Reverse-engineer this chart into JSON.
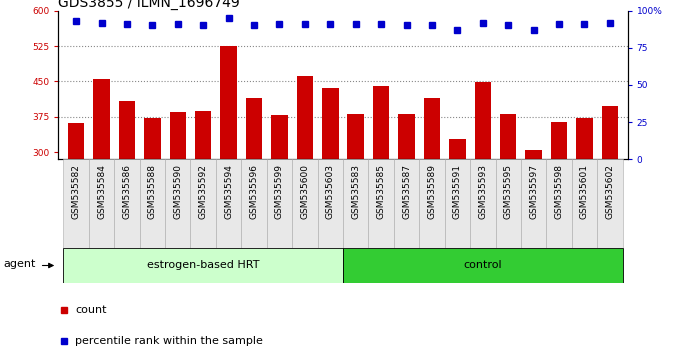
{
  "title": "GDS3855 / ILMN_1696749",
  "categories": [
    "GSM535582",
    "GSM535584",
    "GSM535586",
    "GSM535588",
    "GSM535590",
    "GSM535592",
    "GSM535594",
    "GSM535596",
    "GSM535599",
    "GSM535600",
    "GSM535603",
    "GSM535583",
    "GSM535585",
    "GSM535587",
    "GSM535589",
    "GSM535591",
    "GSM535593",
    "GSM535595",
    "GSM535597",
    "GSM535598",
    "GSM535601",
    "GSM535602"
  ],
  "bar_values": [
    362,
    455,
    408,
    372,
    385,
    388,
    525,
    415,
    378,
    462,
    435,
    382,
    440,
    382,
    415,
    328,
    448,
    382,
    305,
    365,
    372,
    398
  ],
  "percentile_values": [
    93,
    92,
    91,
    90,
    91,
    90,
    95,
    90,
    91,
    91,
    91,
    91,
    91,
    90,
    90,
    87,
    92,
    90,
    87,
    91,
    91,
    92
  ],
  "group1_label": "estrogen-based HRT",
  "group2_label": "control",
  "group1_count": 11,
  "group2_count": 11,
  "bar_color": "#cc0000",
  "dot_color": "#0000cc",
  "ylim_left": [
    285,
    600
  ],
  "ylim_right": [
    0,
    100
  ],
  "yticks_left": [
    300,
    375,
    450,
    525,
    600
  ],
  "yticks_right": [
    0,
    25,
    50,
    75,
    100
  ],
  "ylabel_left_color": "#cc0000",
  "ylabel_right_color": "#0000cc",
  "background_color": "#ffffff",
  "group_bg_color1": "#ccffcc",
  "group_bg_color2": "#33cc33",
  "agent_label": "agent",
  "legend_count_label": "count",
  "legend_percentile_label": "percentile rank within the sample",
  "dotted_line_color": "#888888",
  "title_fontsize": 10,
  "tick_fontsize": 6.5,
  "label_fontsize": 8,
  "group_fontsize": 8
}
